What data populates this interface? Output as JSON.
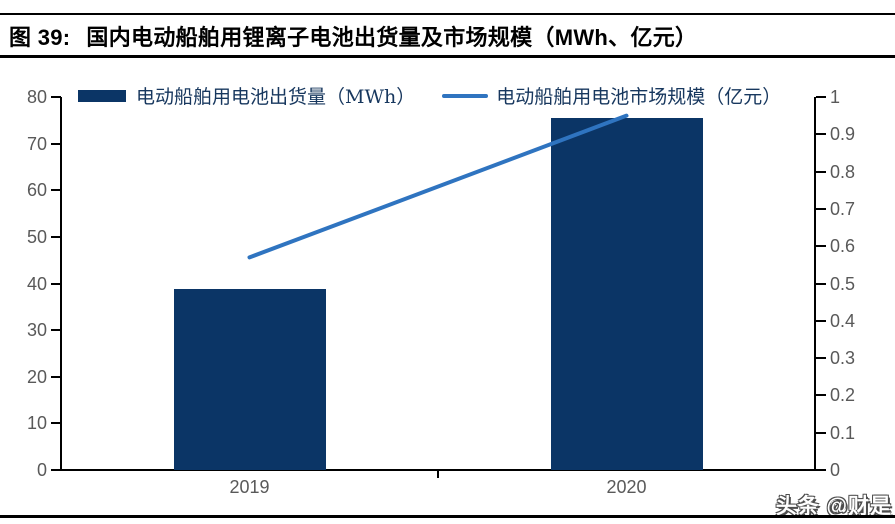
{
  "figure": {
    "label": "图 39:",
    "title": "国内电动船舶用锂离子电池出货量及市场规模（MWh、亿元）",
    "watermark": "头条 @财是"
  },
  "colors": {
    "bar": "#0b3566",
    "line": "#2f74c0",
    "axis": "#000000",
    "tick_label": "#595959",
    "legend_text": "#17375e"
  },
  "chart_data": {
    "type": "bar",
    "subtype": "bar+line combo, dual axis",
    "categories": [
      "2019",
      "2020"
    ],
    "series": [
      {
        "name": "电动船舶用电池出货量（MWh）",
        "type": "bar",
        "axis": "left",
        "values": [
          38.8,
          75.6
        ]
      },
      {
        "name": "电动船舶用电池市场规模（亿元）",
        "type": "line",
        "axis": "right",
        "values": [
          0.57,
          0.95
        ]
      }
    ],
    "left_axis": {
      "min": 0,
      "max": 80,
      "tick_labels": [
        "0",
        "10",
        "20",
        "30",
        "40",
        "50",
        "60",
        "70",
        "80"
      ]
    },
    "right_axis": {
      "min": 0,
      "max": 1,
      "tick_labels": [
        "0",
        "0.1",
        "0.2",
        "0.3",
        "0.4",
        "0.5",
        "0.6",
        "0.7",
        "0.8",
        "0.9",
        "1"
      ]
    },
    "legend_position": "top",
    "grid": false
  }
}
